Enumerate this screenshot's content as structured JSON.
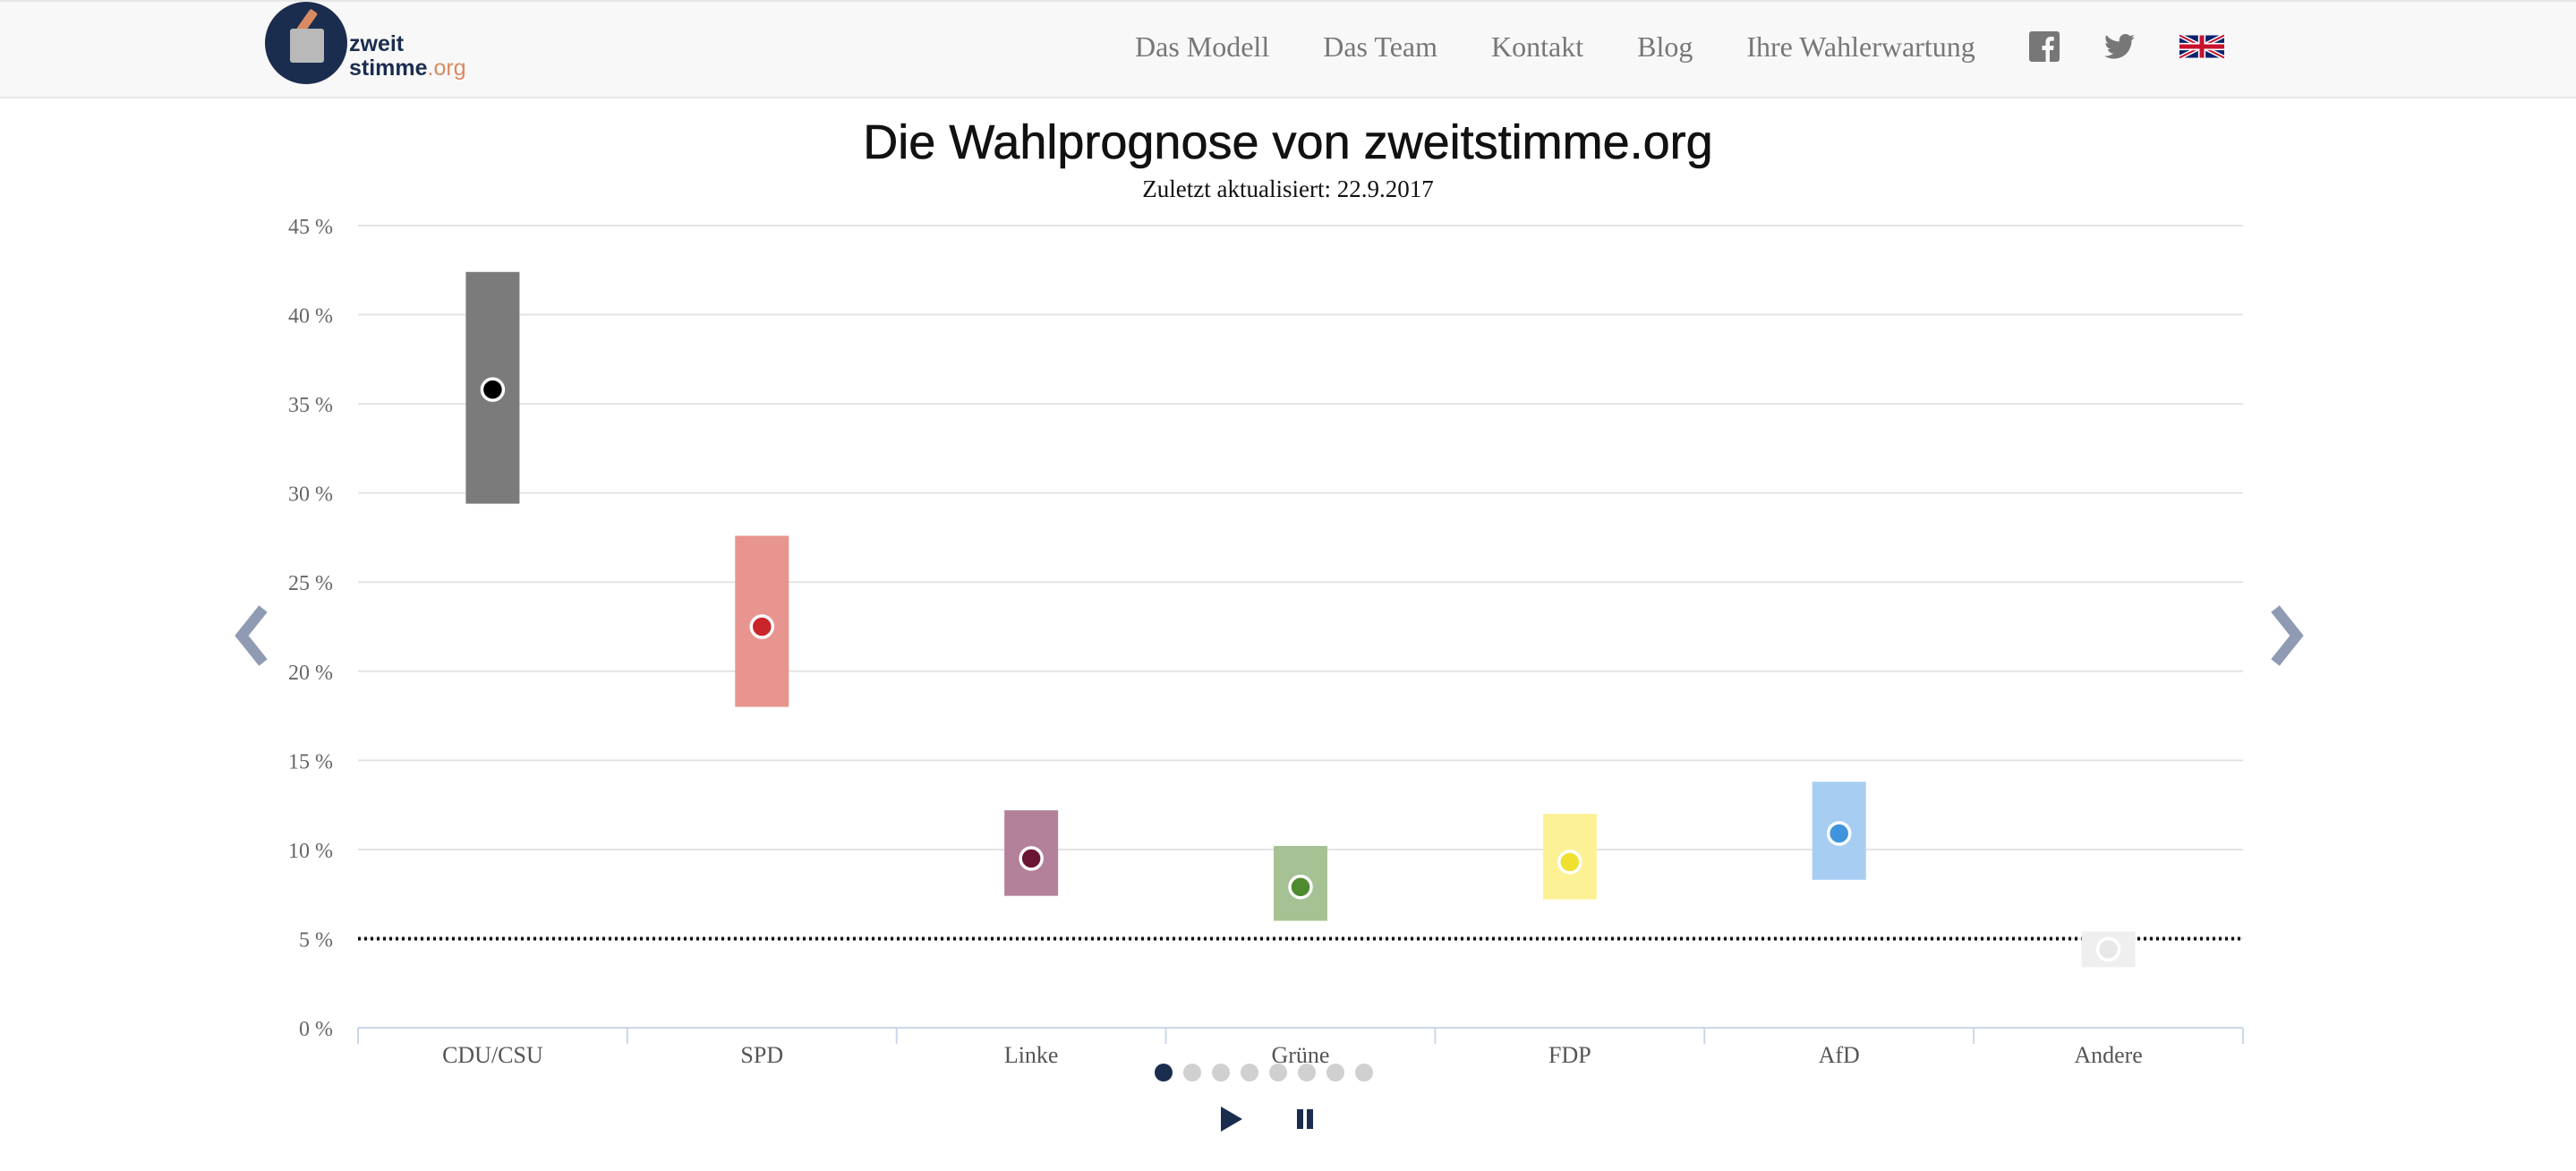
{
  "nav": {
    "logo_line1": "zweit",
    "logo_line2a": "stimme",
    "logo_line2b": ".org",
    "items": [
      "Das Modell",
      "Das Team",
      "Kontakt",
      "Blog",
      "Ihre Wahlerwartung"
    ],
    "social_icons": [
      "facebook-icon",
      "twitter-icon"
    ],
    "language_icon": "uk-flag-icon"
  },
  "header": {
    "title": "Die Wahlprognose von zweitstimme.org",
    "subtitle": "Zuletzt aktualisiert: 22.9.2017"
  },
  "chart_data": {
    "type": "scatter",
    "subtype": "point-estimate-with-interval",
    "title": "Die Wahlprognose von zweitstimme.org",
    "subtitle": "Zuletzt aktualisiert: 22.9.2017",
    "xlabel": "",
    "ylabel": "",
    "ylim": [
      0,
      45
    ],
    "yticks": [
      0,
      5,
      10,
      15,
      20,
      25,
      30,
      35,
      40,
      45
    ],
    "ytick_suffix": " %",
    "grid": true,
    "threshold": 5,
    "categories": [
      "CDU/CSU",
      "SPD",
      "Linke",
      "Grüne",
      "FDP",
      "AfD",
      "Andere"
    ],
    "estimates": [
      35.8,
      22.5,
      9.5,
      7.9,
      9.3,
      10.9,
      4.4
    ],
    "lower": [
      29.4,
      18.0,
      7.4,
      6.0,
      7.2,
      8.3,
      3.4
    ],
    "upper": [
      42.4,
      27.6,
      12.2,
      10.2,
      12.0,
      13.8,
      5.4
    ],
    "colors": {
      "bars": [
        "#7b7b7b",
        "#e8958f",
        "#b3819a",
        "#a6c294",
        "#fdf196",
        "#a7cef2",
        "#efefef"
      ],
      "points": [
        "#000000",
        "#c9252b",
        "#6b1535",
        "#4e8a2e",
        "#f0e130",
        "#3f95dd",
        "#e8e8e8"
      ]
    }
  },
  "carousel": {
    "dot_count": 8,
    "active_index": 0
  }
}
